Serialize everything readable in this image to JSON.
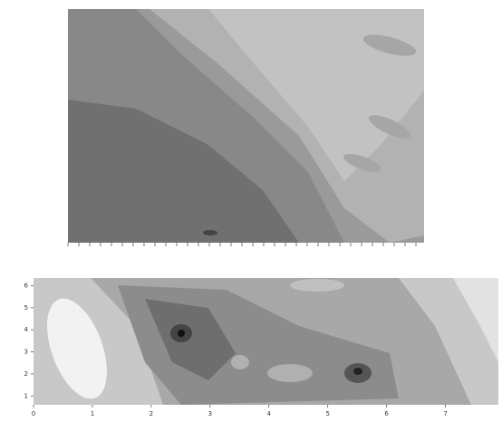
{
  "chart_data": [
    {
      "type": "contour"
    },
    {
      "type": "contour",
      "xlim": [
        0,
        7.9
      ],
      "xticks": [
        0,
        1,
        2,
        3,
        4,
        5,
        6,
        7
      ],
      "ylim": [
        0.6,
        6.35
      ],
      "yticks": [
        1,
        2,
        3,
        4,
        5,
        6
      ]
    }
  ]
}
